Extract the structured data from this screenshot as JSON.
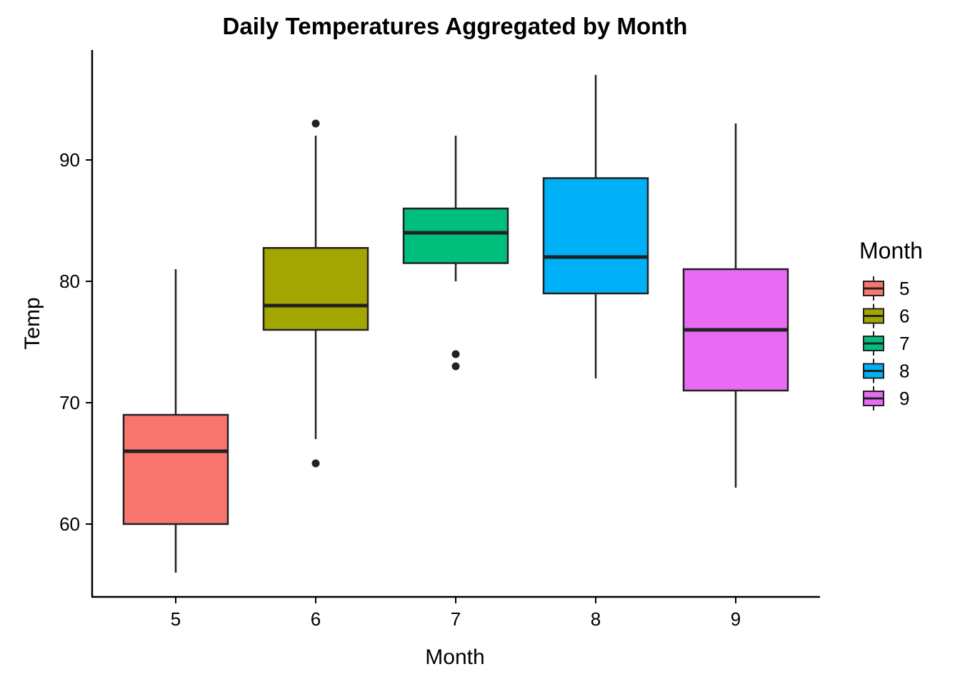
{
  "chart_data": {
    "type": "boxplot",
    "title": "Daily Temperatures Aggregated by Month",
    "xlabel": "Month",
    "ylabel": "Temp",
    "categories": [
      "5",
      "6",
      "7",
      "8",
      "9"
    ],
    "ylim": [
      54.5,
      98.0
    ],
    "yticks": [
      60,
      70,
      80,
      90
    ],
    "grid": false,
    "legend": {
      "title": "Month",
      "position": "right",
      "entries": [
        "5",
        "6",
        "7",
        "8",
        "9"
      ]
    },
    "series": [
      {
        "name": "5",
        "color": "#F8766D",
        "min": 56,
        "q1": 60,
        "median": 66,
        "q3": 69,
        "max": 81,
        "outliers": []
      },
      {
        "name": "6",
        "color": "#A3A500",
        "min": 67,
        "q1": 76,
        "median": 78,
        "q3": 82.75,
        "max": 92,
        "outliers": [
          93,
          65
        ]
      },
      {
        "name": "7",
        "color": "#00BF7D",
        "min": 80,
        "q1": 81.5,
        "median": 84,
        "q3": 86,
        "max": 92,
        "outliers": [
          74,
          73
        ]
      },
      {
        "name": "8",
        "color": "#00B0F6",
        "min": 72,
        "q1": 79,
        "median": 82,
        "q3": 88.5,
        "max": 97,
        "outliers": []
      },
      {
        "name": "9",
        "color": "#E76BF3",
        "min": 63,
        "q1": 71,
        "median": 76,
        "q3": 81,
        "max": 93,
        "outliers": []
      }
    ]
  }
}
